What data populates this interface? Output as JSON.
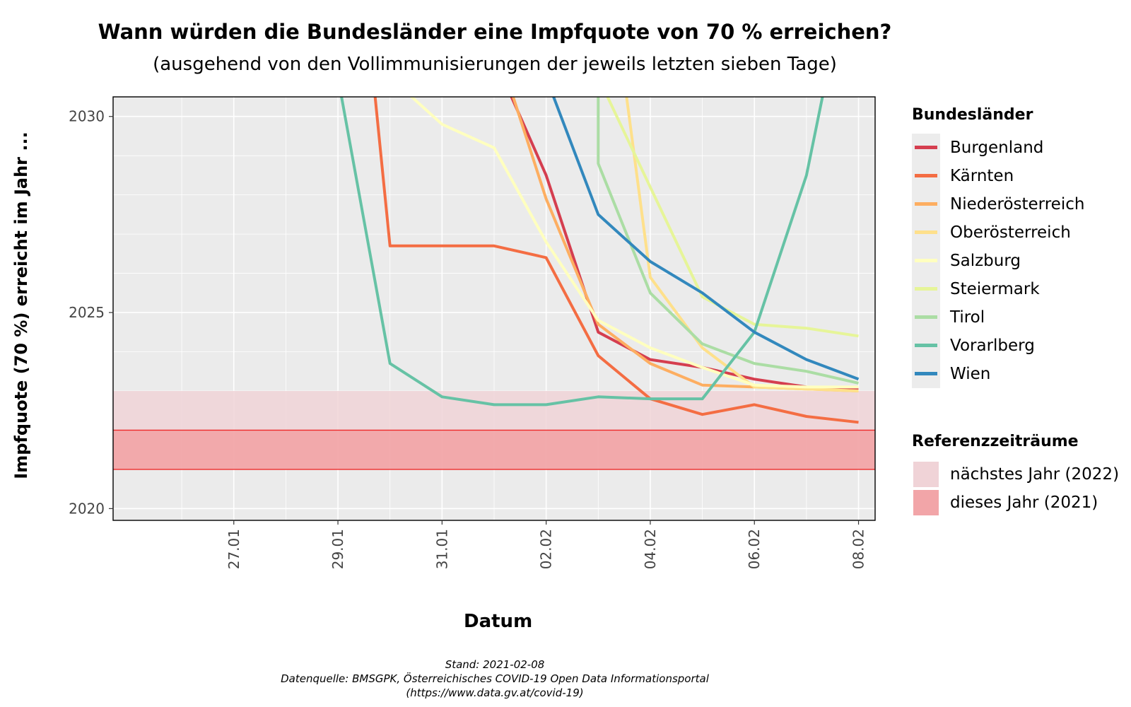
{
  "chart_data": {
    "type": "line",
    "title": "Wann würden die Bundesländer eine Impfquote von 70 % erreichen?",
    "subtitle": "(ausgehend von den Vollimmunisierungen der jeweils letzten sieben Tage)",
    "xlabel": "Datum",
    "ylabel": "Impfquote (70 %) erreicht im Jahr ...",
    "x_ticks": [
      "27.01",
      "29.01",
      "31.01",
      "02.02",
      "04.02",
      "06.02",
      "08.02"
    ],
    "y_ticks": [
      2020,
      2025,
      2030
    ],
    "xlim": [
      "2021-01-25",
      "2021-02-08"
    ],
    "ylim": [
      2019.7,
      2030.5
    ],
    "grid": true,
    "legend_title": "Bundesländer",
    "series": [
      {
        "name": "Burgenland",
        "color": "#d53e4f",
        "x": [
          "2021-02-01",
          "2021-02-02",
          "2021-02-03",
          "2021-02-04",
          "2021-02-05",
          "2021-02-06",
          "2021-02-07",
          "2021-02-08"
        ],
        "values": [
          2031.5,
          2028.5,
          2024.5,
          2023.8,
          2023.6,
          2023.3,
          2023.1,
          2023.05
        ]
      },
      {
        "name": "Kärnten",
        "color": "#f46d43",
        "x": [
          "2021-01-29",
          "2021-01-30",
          "2021-01-31",
          "2021-02-01",
          "2021-02-02",
          "2021-02-03",
          "2021-02-04",
          "2021-02-05",
          "2021-02-06",
          "2021-02-07",
          "2021-02-08"
        ],
        "values": [
          2040,
          2026.7,
          2026.7,
          2026.7,
          2026.4,
          2023.9,
          2022.8,
          2022.4,
          2022.65,
          2022.35,
          2022.2
        ]
      },
      {
        "name": "Niederösterreich",
        "color": "#fdae61",
        "x": [
          "2021-02-01",
          "2021-02-02",
          "2021-02-03",
          "2021-02-04",
          "2021-02-05",
          "2021-02-06",
          "2021-02-07",
          "2021-02-08"
        ],
        "values": [
          2032,
          2027.9,
          2024.7,
          2023.7,
          2023.15,
          2023.1,
          2023.05,
          2023.0
        ]
      },
      {
        "name": "Oberösterreich",
        "color": "#fee08b",
        "x": [
          "2021-02-03",
          "2021-02-04",
          "2021-02-05",
          "2021-02-06",
          "2021-02-07",
          "2021-02-08"
        ],
        "values": [
          2036,
          2025.9,
          2024.1,
          2023.1,
          2023.05,
          2023.0
        ]
      },
      {
        "name": "Salzburg",
        "color": "#ffffbf",
        "x": [
          "2021-01-30",
          "2021-01-31",
          "2021-02-01",
          "2021-02-02",
          "2021-02-03",
          "2021-02-04",
          "2021-02-05",
          "2021-02-06",
          "2021-02-07",
          "2021-02-08"
        ],
        "values": [
          2031,
          2029.8,
          2029.2,
          2026.8,
          2024.8,
          2024.1,
          2023.6,
          2023.15,
          2023.1,
          2023.1
        ]
      },
      {
        "name": "Steiermark",
        "color": "#e6f598",
        "x": [
          "2021-02-03",
          "2021-02-04",
          "2021-02-05",
          "2021-02-06",
          "2021-02-07",
          "2021-02-08"
        ],
        "values": [
          2031,
          2028.2,
          2025.4,
          2024.7,
          2024.6,
          2024.4
        ]
      },
      {
        "name": "Tirol",
        "color": "#abdda4",
        "x": [
          "2021-02-03",
          "2021-02-03",
          "2021-02-04",
          "2021-02-05",
          "2021-02-06",
          "2021-02-07",
          "2021-02-08"
        ],
        "values": [
          2031,
          2028.8,
          2025.5,
          2024.2,
          2023.7,
          2023.5,
          2023.2
        ]
      },
      {
        "name": "Vorarlberg",
        "color": "#66c2a5",
        "x": [
          "2021-01-29",
          "2021-01-30",
          "2021-01-31",
          "2021-02-01",
          "2021-02-02",
          "2021-02-03",
          "2021-02-04",
          "2021-02-05",
          "2021-02-06",
          "2021-02-07",
          "2021-02-08"
        ],
        "values": [
          2031,
          2023.7,
          2022.85,
          2022.65,
          2022.65,
          2022.85,
          2022.8,
          2022.8,
          2024.5,
          2028.5,
          2035
        ]
      },
      {
        "name": "Wien",
        "color": "#3288bd",
        "x": [
          "2021-02-02",
          "2021-02-03",
          "2021-02-04",
          "2021-02-05",
          "2021-02-06",
          "2021-02-07",
          "2021-02-08"
        ],
        "values": [
          2031,
          2027.5,
          2026.3,
          2025.5,
          2024.5,
          2023.8,
          2023.3
        ]
      }
    ],
    "reference_bands": {
      "legend_title": "Referenzzeiträume",
      "items": [
        {
          "name": "nächstes Jahr (2022)",
          "from": 2022,
          "to": 2023,
          "color": "#f0d3d7"
        },
        {
          "name": "dieses Jahr (2021)",
          "from": 2021,
          "to": 2022,
          "color": "#f2a5a8"
        }
      ],
      "border_color": "#ee2a2a"
    }
  },
  "caption": {
    "line1": "Stand: 2021-02-08",
    "line2": "Datenquelle: BMSGPK, Österreichisches COVID-19 Open Data Informationsportal",
    "line3": "(https://www.data.gv.at/covid-19)"
  }
}
